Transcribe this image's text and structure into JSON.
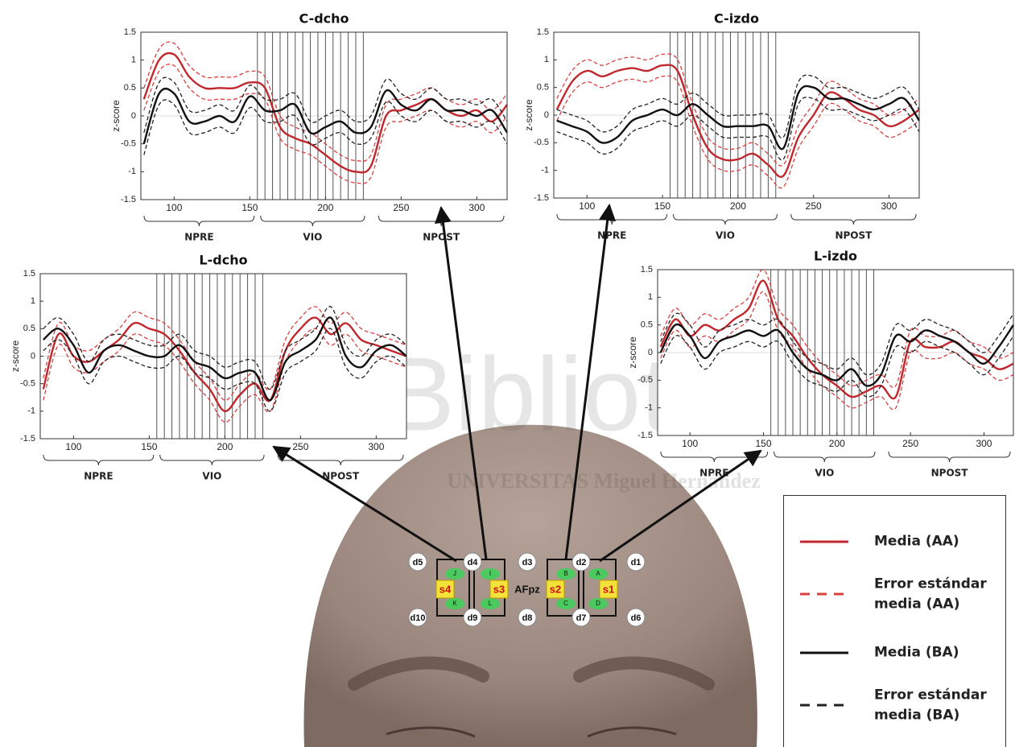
{
  "chart_data": [
    {
      "type": "line",
      "title": "C-dcho",
      "ylabel": "z-score",
      "x": [
        80,
        90,
        100,
        110,
        120,
        130,
        140,
        150,
        160,
        170,
        180,
        190,
        200,
        210,
        220,
        230,
        240,
        250,
        260,
        270,
        280,
        290,
        300,
        310,
        320
      ],
      "xlim": [
        78,
        320
      ],
      "xticks": [
        100,
        150,
        200,
        250,
        300
      ],
      "ylim": [
        -1.5,
        1.5
      ],
      "yticks": [
        1.5,
        1,
        0.5,
        0,
        -0.5,
        -1,
        -1.5
      ],
      "vlines": [
        155,
        160,
        165,
        170,
        175,
        180,
        185,
        190,
        195,
        200,
        205,
        210,
        215,
        220,
        225
      ],
      "periods": [
        {
          "label": "NPRE",
          "range": [
            78,
            155
          ]
        },
        {
          "label": "VIO",
          "range": [
            155,
            228
          ]
        },
        {
          "label": "NPOST",
          "range": [
            233,
            320
          ]
        }
      ],
      "series": [
        {
          "values": [
            0.3,
            1.0,
            1.1,
            0.7,
            0.5,
            0.5,
            0.5,
            0.6,
            0.5,
            -0.2,
            -0.4,
            -0.5,
            -0.7,
            -0.9,
            -1.0,
            -0.9,
            0.0,
            0.1,
            0.2,
            0.3,
            0.1,
            0.0,
            0.1,
            -0.1,
            0.2
          ],
          "upper": [
            0.5,
            1.2,
            1.3,
            0.9,
            0.7,
            0.7,
            0.7,
            0.8,
            0.7,
            0.0,
            -0.2,
            -0.3,
            -0.5,
            -0.7,
            -0.8,
            -0.7,
            0.2,
            0.3,
            0.4,
            0.5,
            0.3,
            0.2,
            0.3,
            0.1,
            0.4
          ],
          "lower": [
            0.1,
            0.8,
            0.9,
            0.5,
            0.3,
            0.3,
            0.3,
            0.4,
            0.3,
            -0.4,
            -0.6,
            -0.7,
            -0.9,
            -1.1,
            -1.2,
            -1.1,
            -0.2,
            -0.1,
            0.0,
            0.1,
            -0.1,
            -0.2,
            -0.1,
            -0.3,
            0.0
          ]
        },
        {
          "values": [
            -0.5,
            0.4,
            0.4,
            -0.1,
            -0.1,
            0.0,
            -0.1,
            0.35,
            0.1,
            0.1,
            0.2,
            -0.3,
            -0.2,
            -0.1,
            -0.3,
            -0.2,
            0.45,
            0.2,
            0.1,
            0.3,
            0.1,
            0.1,
            0.0,
            0.1,
            -0.3
          ],
          "upper": [
            -0.3,
            0.6,
            0.6,
            0.1,
            0.1,
            0.2,
            0.1,
            0.55,
            0.3,
            0.3,
            0.4,
            -0.1,
            0.0,
            0.1,
            -0.1,
            0.0,
            0.65,
            0.4,
            0.3,
            0.5,
            0.3,
            0.3,
            0.2,
            0.3,
            -0.1
          ],
          "lower": [
            -0.7,
            0.2,
            0.2,
            -0.3,
            -0.3,
            -0.2,
            -0.3,
            0.15,
            -0.1,
            -0.1,
            0.0,
            -0.5,
            -0.4,
            -0.3,
            -0.5,
            -0.4,
            0.25,
            0.0,
            -0.1,
            0.1,
            -0.1,
            -0.1,
            -0.2,
            -0.1,
            -0.5
          ]
        }
      ]
    },
    {
      "type": "line",
      "title": "C-izdo",
      "ylabel": "z-score",
      "x": [
        80,
        90,
        100,
        110,
        120,
        130,
        140,
        150,
        160,
        170,
        180,
        190,
        200,
        210,
        220,
        230,
        240,
        250,
        260,
        270,
        280,
        290,
        300,
        310,
        320
      ],
      "xlim": [
        78,
        320
      ],
      "xticks": [
        100,
        150,
        200,
        250,
        300
      ],
      "ylim": [
        -1.5,
        1.5
      ],
      "yticks": [
        1.5,
        1,
        0.5,
        0,
        -0.5,
        -1,
        -1.5
      ],
      "vlines": [
        155,
        160,
        165,
        170,
        175,
        180,
        185,
        190,
        195,
        200,
        205,
        210,
        215,
        220,
        225
      ],
      "periods": [
        {
          "label": "NPRE",
          "range": [
            78,
            155
          ]
        },
        {
          "label": "VIO",
          "range": [
            155,
            228
          ]
        },
        {
          "label": "NPOST",
          "range": [
            233,
            320
          ]
        }
      ],
      "series": [
        {
          "values": [
            0.1,
            0.6,
            0.8,
            0.7,
            0.8,
            0.85,
            0.8,
            0.9,
            0.8,
            0.0,
            -0.6,
            -0.8,
            -0.8,
            -0.7,
            -0.9,
            -1.1,
            -0.4,
            0.0,
            0.4,
            0.3,
            0.1,
            0.0,
            -0.2,
            -0.1,
            0.1
          ],
          "upper": [
            0.3,
            0.8,
            1.0,
            0.9,
            1.0,
            1.05,
            1.0,
            1.1,
            1.0,
            0.2,
            -0.4,
            -0.6,
            -0.6,
            -0.5,
            -0.7,
            -0.9,
            -0.2,
            0.2,
            0.6,
            0.5,
            0.3,
            0.2,
            0.0,
            0.1,
            0.3
          ],
          "lower": [
            -0.1,
            0.4,
            0.6,
            0.5,
            0.6,
            0.65,
            0.6,
            0.7,
            0.6,
            -0.2,
            -0.8,
            -1.0,
            -1.0,
            -0.9,
            -1.1,
            -1.3,
            -0.6,
            -0.2,
            0.2,
            0.1,
            -0.1,
            -0.2,
            -0.4,
            -0.3,
            -0.1
          ]
        },
        {
          "values": [
            -0.1,
            -0.2,
            -0.3,
            -0.5,
            -0.4,
            -0.1,
            0.0,
            0.1,
            0.0,
            0.2,
            0.0,
            -0.2,
            -0.2,
            -0.2,
            -0.2,
            -0.6,
            0.4,
            0.5,
            0.3,
            0.3,
            0.2,
            0.1,
            0.2,
            0.3,
            -0.1
          ],
          "upper": [
            0.1,
            0.0,
            -0.1,
            -0.3,
            -0.2,
            0.1,
            0.2,
            0.3,
            0.2,
            0.4,
            0.2,
            0.0,
            0.0,
            0.0,
            0.0,
            -0.4,
            0.6,
            0.7,
            0.5,
            0.5,
            0.4,
            0.3,
            0.4,
            0.5,
            0.1
          ],
          "lower": [
            -0.3,
            -0.4,
            -0.5,
            -0.7,
            -0.6,
            -0.3,
            -0.2,
            -0.1,
            -0.2,
            0.0,
            -0.2,
            -0.4,
            -0.4,
            -0.4,
            -0.4,
            -0.8,
            0.2,
            0.3,
            0.1,
            0.1,
            0.0,
            -0.1,
            0.0,
            0.1,
            -0.3
          ]
        }
      ]
    },
    {
      "type": "line",
      "title": "L-dcho",
      "ylabel": "z-score",
      "x": [
        80,
        90,
        100,
        110,
        120,
        130,
        140,
        150,
        160,
        170,
        180,
        190,
        200,
        210,
        220,
        230,
        240,
        250,
        260,
        270,
        280,
        290,
        300,
        310,
        320
      ],
      "xlim": [
        78,
        320
      ],
      "xticks": [
        100,
        150,
        200,
        250,
        300
      ],
      "ylim": [
        -1.5,
        1.5
      ],
      "yticks": [
        1.5,
        1,
        0.5,
        0,
        -0.5,
        -1,
        -1.5
      ],
      "vlines": [
        155,
        160,
        165,
        170,
        175,
        180,
        185,
        190,
        195,
        200,
        205,
        210,
        215,
        220,
        225
      ],
      "periods": [
        {
          "label": "NPRE",
          "range": [
            78,
            155
          ]
        },
        {
          "label": "VIO",
          "range": [
            155,
            228
          ]
        },
        {
          "label": "NPOST",
          "range": [
            233,
            320
          ]
        }
      ],
      "series": [
        {
          "values": [
            -0.6,
            0.4,
            0.0,
            -0.1,
            0.1,
            0.3,
            0.6,
            0.5,
            0.4,
            0.1,
            -0.3,
            -0.6,
            -1.0,
            -0.7,
            -0.5,
            -0.8,
            0.1,
            0.5,
            0.7,
            0.4,
            0.6,
            0.3,
            0.2,
            0.1,
            0.0
          ],
          "upper": [
            -0.4,
            0.6,
            0.2,
            0.1,
            0.3,
            0.5,
            0.8,
            0.7,
            0.6,
            0.3,
            -0.1,
            -0.4,
            -0.8,
            -0.5,
            -0.3,
            -0.6,
            0.3,
            0.7,
            0.9,
            0.6,
            0.8,
            0.5,
            0.4,
            0.3,
            0.2
          ],
          "lower": [
            -0.8,
            0.2,
            -0.2,
            -0.3,
            -0.1,
            0.1,
            0.4,
            0.3,
            0.2,
            -0.1,
            -0.5,
            -0.8,
            -1.2,
            -0.9,
            -0.7,
            -1.0,
            -0.1,
            0.3,
            0.5,
            0.2,
            0.4,
            0.1,
            0.0,
            -0.1,
            -0.2
          ]
        },
        {
          "values": [
            0.3,
            0.5,
            0.2,
            -0.3,
            0.1,
            0.2,
            0.1,
            0.0,
            0.0,
            0.2,
            -0.1,
            -0.2,
            -0.4,
            -0.3,
            -0.3,
            -0.8,
            -0.1,
            0.1,
            0.3,
            0.7,
            0.0,
            -0.2,
            0.1,
            0.2,
            0.0
          ],
          "upper": [
            0.5,
            0.7,
            0.4,
            -0.1,
            0.3,
            0.4,
            0.3,
            0.2,
            0.2,
            0.4,
            0.1,
            0.0,
            -0.2,
            -0.1,
            -0.1,
            -0.6,
            0.1,
            0.3,
            0.5,
            0.9,
            0.2,
            0.0,
            0.3,
            0.4,
            0.2
          ],
          "lower": [
            0.1,
            0.3,
            0.0,
            -0.5,
            -0.1,
            0.0,
            -0.1,
            -0.2,
            -0.2,
            0.0,
            -0.3,
            -0.4,
            -0.6,
            -0.5,
            -0.5,
            -1.0,
            -0.3,
            -0.1,
            0.1,
            0.5,
            -0.2,
            -0.4,
            -0.1,
            0.0,
            -0.2
          ]
        }
      ]
    },
    {
      "type": "line",
      "title": "L-izdo",
      "ylabel": "z-score",
      "x": [
        80,
        90,
        100,
        110,
        120,
        130,
        140,
        150,
        160,
        170,
        180,
        190,
        200,
        210,
        220,
        230,
        240,
        250,
        260,
        270,
        280,
        290,
        300,
        310,
        320
      ],
      "xlim": [
        78,
        320
      ],
      "xticks": [
        100,
        150,
        200,
        250,
        300
      ],
      "ylim": [
        -1.5,
        1.5
      ],
      "yticks": [
        1.5,
        1,
        0.5,
        0,
        -0.5,
        -1,
        -1.5
      ],
      "vlines": [
        155,
        160,
        165,
        170,
        175,
        180,
        185,
        190,
        195,
        200,
        205,
        210,
        215,
        220,
        225
      ],
      "periods": [
        {
          "label": "NPRE",
          "range": [
            78,
            155
          ]
        },
        {
          "label": "VIO",
          "range": [
            155,
            228
          ]
        },
        {
          "label": "NPOST",
          "range": [
            233,
            320
          ]
        }
      ],
      "series": [
        {
          "values": [
            0.1,
            0.6,
            0.3,
            0.5,
            0.4,
            0.6,
            0.8,
            1.3,
            0.6,
            0.3,
            -0.1,
            -0.4,
            -0.6,
            -0.8,
            -0.7,
            -0.6,
            -0.8,
            0.2,
            0.1,
            0.1,
            0.2,
            0.0,
            -0.1,
            -0.3,
            -0.2
          ],
          "upper": [
            0.3,
            0.8,
            0.5,
            0.7,
            0.6,
            0.8,
            1.0,
            1.5,
            0.8,
            0.5,
            0.1,
            -0.2,
            -0.4,
            -0.6,
            -0.5,
            -0.4,
            -0.6,
            0.4,
            0.3,
            0.3,
            0.4,
            0.2,
            0.1,
            -0.1,
            0.0
          ],
          "lower": [
            -0.1,
            0.4,
            0.1,
            0.3,
            0.2,
            0.4,
            0.6,
            1.1,
            0.4,
            0.1,
            -0.3,
            -0.6,
            -0.8,
            -1.0,
            -0.9,
            -0.8,
            -1.0,
            0.0,
            -0.1,
            -0.1,
            0.0,
            -0.2,
            -0.3,
            -0.5,
            -0.4
          ]
        },
        {
          "values": [
            0.0,
            0.5,
            0.3,
            -0.1,
            0.2,
            0.3,
            0.4,
            0.3,
            0.4,
            0.0,
            -0.3,
            -0.4,
            -0.5,
            -0.3,
            -0.6,
            -0.4,
            0.3,
            0.2,
            0.4,
            0.3,
            0.2,
            0.0,
            -0.2,
            0.1,
            0.5
          ],
          "upper": [
            0.2,
            0.7,
            0.5,
            0.1,
            0.4,
            0.5,
            0.6,
            0.5,
            0.6,
            0.2,
            -0.1,
            -0.2,
            -0.3,
            -0.1,
            -0.4,
            -0.2,
            0.5,
            0.4,
            0.6,
            0.5,
            0.4,
            0.2,
            0.0,
            0.3,
            0.7
          ],
          "lower": [
            -0.2,
            0.3,
            0.1,
            -0.3,
            0.0,
            0.1,
            0.2,
            0.1,
            0.2,
            -0.2,
            -0.5,
            -0.6,
            -0.7,
            -0.5,
            -0.8,
            -0.6,
            0.1,
            0.0,
            0.2,
            0.1,
            0.0,
            -0.2,
            -0.4,
            -0.1,
            0.3
          ]
        }
      ]
    }
  ],
  "legend": [
    {
      "label": "Media (AA)",
      "color": "#c0282d",
      "dash": false
    },
    {
      "label": "Error estándar media (AA)",
      "color": "#d9413f",
      "dash": true
    },
    {
      "label": "Media (BA)",
      "color": "#111111",
      "dash": false
    },
    {
      "label": "Error estándar media (BA)",
      "color": "#222222",
      "dash": true
    }
  ],
  "head": {
    "detectors": [
      "d1",
      "d2",
      "d3",
      "d4",
      "d5",
      "d6",
      "d7",
      "d8",
      "d9",
      "d10"
    ],
    "sources": [
      "s1",
      "s2",
      "s3",
      "s4"
    ],
    "reference": "AFpz",
    "channels": [
      "A",
      "B",
      "C",
      "D",
      "I",
      "J",
      "K",
      "L"
    ]
  },
  "watermark": {
    "title": "Biblioteca",
    "subtitle": "UNIVERSITAS Miguel Hernández"
  }
}
